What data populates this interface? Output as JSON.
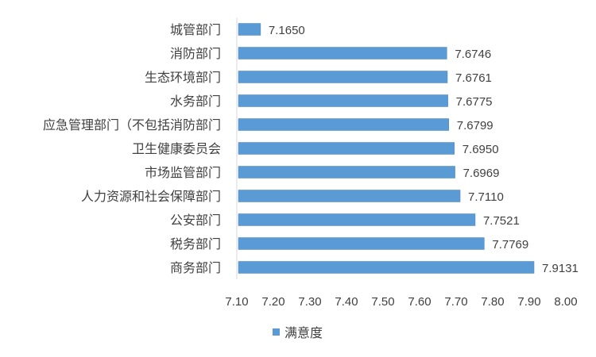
{
  "chart_data": {
    "type": "bar",
    "orientation": "horizontal",
    "categories": [
      "城管部门",
      "消防部门",
      "生态环境部门",
      "水务部门",
      "应急管理部门（不包括消防部门",
      "卫生健康委员会",
      "市场监管部门",
      "人力资源和社会保障部门",
      "公安部门",
      "税务部门",
      "商务部门"
    ],
    "series": [
      {
        "name": "满意度",
        "values": [
          7.165,
          7.6746,
          7.6761,
          7.6775,
          7.6799,
          7.695,
          7.6969,
          7.711,
          7.7521,
          7.7769,
          7.9131
        ],
        "labels": [
          "7.1650",
          "7.6746",
          "7.6761",
          "7.6775",
          "7.6799",
          "7.6950",
          "7.6969",
          "7.7110",
          "7.7521",
          "7.7769",
          "7.9131"
        ]
      }
    ],
    "xlim": [
      7.1,
      8.0
    ],
    "xticks": [
      "7.10",
      "7.20",
      "7.30",
      "7.40",
      "7.50",
      "7.60",
      "7.70",
      "7.80",
      "7.90",
      "8.00"
    ],
    "grid": false,
    "legend": "bottom",
    "colors": {
      "bar": "#5b9bd5",
      "bar_edge": "#4a86c5",
      "text": "#404040",
      "axis": "#d9d9d9"
    }
  }
}
